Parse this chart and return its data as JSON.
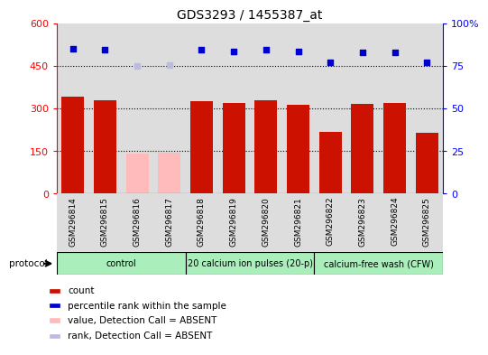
{
  "title": "GDS3293 / 1455387_at",
  "samples": [
    "GSM296814",
    "GSM296815",
    "GSM296816",
    "GSM296817",
    "GSM296818",
    "GSM296819",
    "GSM296820",
    "GSM296821",
    "GSM296822",
    "GSM296823",
    "GSM296824",
    "GSM296825"
  ],
  "count_values": [
    340,
    330,
    140,
    145,
    325,
    318,
    328,
    312,
    218,
    315,
    318,
    215
  ],
  "count_absent": [
    false,
    false,
    true,
    true,
    false,
    false,
    false,
    false,
    false,
    false,
    false,
    false
  ],
  "percentile_values": [
    85,
    84.5,
    74.7,
    75.3,
    84.7,
    83.3,
    84.5,
    83.3,
    77.0,
    82.7,
    83.0,
    77.0
  ],
  "percentile_absent": [
    false,
    false,
    true,
    true,
    false,
    false,
    false,
    false,
    false,
    false,
    false,
    false
  ],
  "ylim_left": [
    0,
    600
  ],
  "ylim_right": [
    0,
    100
  ],
  "yticks_left": [
    0,
    150,
    300,
    450,
    600
  ],
  "yticks_right": [
    0,
    25,
    50,
    75,
    100
  ],
  "yticklabels_right": [
    "0",
    "25",
    "50",
    "75",
    "100%"
  ],
  "protocol_groups": [
    {
      "label": "control",
      "start": 0,
      "end": 3
    },
    {
      "label": "20 calcium ion pulses (20-p)",
      "start": 4,
      "end": 7
    },
    {
      "label": "calcium-free wash (CFW)",
      "start": 8,
      "end": 11
    }
  ],
  "protocol_bg_color": "#aaeebb",
  "bar_color_present": "#cc1100",
  "bar_color_absent": "#ffbbbb",
  "dot_color_present": "#0000cc",
  "dot_color_absent": "#bbbbdd",
  "bar_bg_color": "#dddddd",
  "legend_items": [
    {
      "color": "#cc1100",
      "label": "count"
    },
    {
      "color": "#0000cc",
      "label": "percentile rank within the sample"
    },
    {
      "color": "#ffbbbb",
      "label": "value, Detection Call = ABSENT"
    },
    {
      "color": "#bbbbdd",
      "label": "rank, Detection Call = ABSENT"
    }
  ]
}
